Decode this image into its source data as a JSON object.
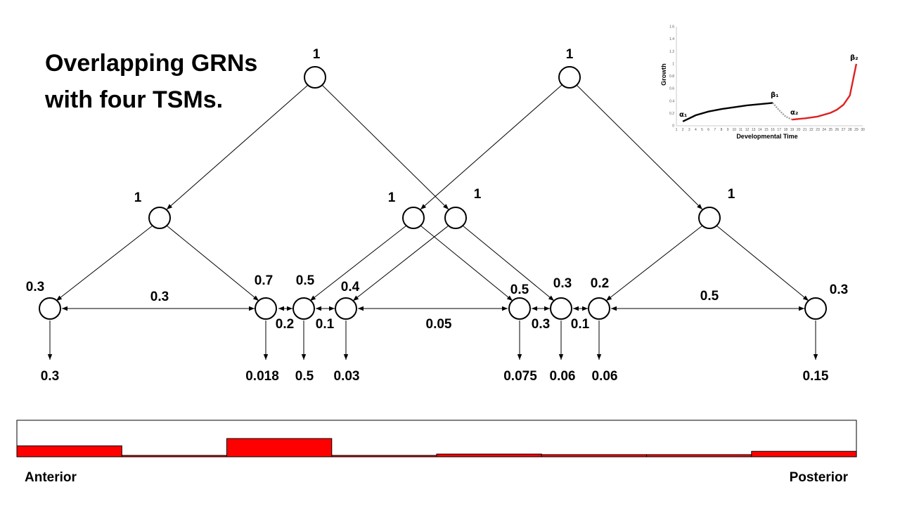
{
  "title": {
    "line1": "Overlapping GRNs",
    "line2": "with four TSMs."
  },
  "nodes": {
    "top_left": "1",
    "top_right": "1",
    "mid_1": "1",
    "mid_2": "1",
    "mid_3": "1",
    "mid_4": "1",
    "leaf_1": "0.3",
    "leaf_2": "0.7",
    "leaf_3": "0.5",
    "leaf_4": "0.4",
    "leaf_5": "0.5",
    "leaf_6": "0.3",
    "leaf_7": "0.2",
    "leaf_8": "0.3"
  },
  "coupling": {
    "c12": "0.3",
    "c23": "0.2",
    "c34": "0.1",
    "c45": "0.05",
    "c56": "0.3",
    "c67": "0.1",
    "c78": "0.5"
  },
  "outputs": [
    "0.3",
    "0.018",
    "0.5",
    "0.03",
    "0.075",
    "0.06",
    "0.06",
    "0.15"
  ],
  "axis_bar": {
    "anterior": "Anterior",
    "posterior": "Posterior",
    "levels": [
      0.3,
      0.018,
      0.5,
      0.03,
      0.075,
      0.06,
      0.06,
      0.15
    ],
    "fill_color": "#ff0000"
  },
  "inset_chart": {
    "y_label": "Growth",
    "x_label": "Developmental Time",
    "y_ticks": [
      "0",
      "0.2",
      "0.4",
      "0.6",
      "0.8",
      "1",
      "1.2",
      "1.4",
      "1.6"
    ],
    "x_ticks": [
      "1",
      "2",
      "3",
      "4",
      "5",
      "6",
      "7",
      "8",
      "9",
      "10",
      "11",
      "12",
      "13",
      "14",
      "15",
      "16",
      "17",
      "18",
      "19",
      "20",
      "21",
      "22",
      "23",
      "24",
      "25",
      "26",
      "27",
      "28",
      "29",
      "30"
    ],
    "annotations": {
      "a1": "α₁",
      "b1": "β₁",
      "a2": "α₂",
      "b2": "β₂"
    },
    "colors": {
      "phase1": "#000000",
      "transition": "#a0a0a0",
      "phase2": "#e02020"
    }
  },
  "chart_data": {
    "type": "line",
    "xlabel": "Developmental Time",
    "ylabel": "Growth",
    "ylim": [
      0,
      1.6
    ],
    "xlim": [
      1,
      30
    ],
    "series": [
      {
        "x": [
          2,
          4,
          6,
          8,
          10,
          12,
          14,
          16
        ],
        "values": [
          0.07,
          0.17,
          0.23,
          0.27,
          0.3,
          0.33,
          0.35,
          0.37
        ]
      },
      {
        "x": [
          16,
          17,
          18,
          19
        ],
        "values": [
          0.37,
          0.25,
          0.15,
          0.1
        ]
      },
      {
        "x": [
          19,
          21,
          23,
          25,
          26,
          27,
          28,
          29
        ],
        "values": [
          0.1,
          0.12,
          0.15,
          0.21,
          0.26,
          0.34,
          0.49,
          1.0
        ]
      }
    ]
  }
}
